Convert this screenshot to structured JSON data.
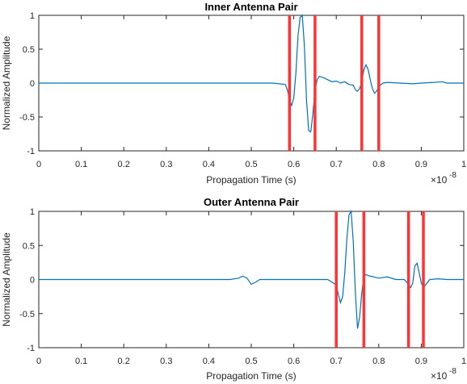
{
  "chart_data": [
    {
      "type": "line",
      "title": "Inner Antenna Pair",
      "xlabel": "Propagation Time (s)",
      "ylabel": "Normalized Amplitude",
      "xlim": [
        0,
        1
      ],
      "ylim": [
        -1,
        1
      ],
      "x_exponent_label": "×10",
      "x_exponent": "-8",
      "xticks": [
        0,
        0.1,
        0.2,
        0.3,
        0.4,
        0.5,
        0.6,
        0.7,
        0.8,
        0.9,
        1
      ],
      "xtick_labels": [
        "0",
        "0.1",
        "0.2",
        "0.3",
        "0.4",
        "0.5",
        "0.6",
        "0.7",
        "0.8",
        "0.9",
        "1"
      ],
      "yticks": [
        1,
        0.5,
        0,
        -0.5,
        -1
      ],
      "ytick_labels": [
        "1",
        "0.5",
        "0",
        "-0.5",
        "-1"
      ],
      "grid": false,
      "line_color": "#0072BD",
      "marker_color": "#FF3333",
      "series": [
        {
          "x": [
            0,
            0.55,
            0.58,
            0.585,
            0.59,
            0.595,
            0.6,
            0.605,
            0.61,
            0.615,
            0.62,
            0.625,
            0.63,
            0.635,
            0.64,
            0.645,
            0.65,
            0.655,
            0.66,
            0.67,
            0.68,
            0.69,
            0.7,
            0.71,
            0.72,
            0.73,
            0.74,
            0.745,
            0.75,
            0.755,
            0.76,
            0.765,
            0.77,
            0.775,
            0.78,
            0.785,
            0.79,
            0.795,
            0.8,
            0.81,
            0.82,
            0.85,
            0.88,
            0.9,
            0.93,
            0.95,
            0.96,
            1.0
          ],
          "y": [
            0,
            0,
            -0.02,
            -0.1,
            -0.25,
            -0.33,
            -0.22,
            0.15,
            0.7,
            0.97,
            1.0,
            0.55,
            -0.25,
            -0.7,
            -0.72,
            -0.45,
            -0.1,
            0.05,
            0.1,
            0.08,
            0.05,
            0.02,
            0.03,
            0.0,
            0.02,
            -0.02,
            -0.03,
            -0.1,
            -0.12,
            -0.08,
            0.02,
            0.2,
            0.27,
            0.2,
            0.05,
            -0.08,
            -0.15,
            -0.12,
            -0.05,
            0.0,
            0.01,
            0.0,
            -0.01,
            0.0,
            0.01,
            0.02,
            0.0,
            0
          ]
        }
      ],
      "vlines": [
        0.59,
        0.65,
        0.76,
        0.8
      ]
    },
    {
      "type": "line",
      "title": "Outer Antenna Pair",
      "xlabel": "Propagation Time (s)",
      "ylabel": "Normalized Amplitude",
      "xlim": [
        0,
        1
      ],
      "ylim": [
        -1,
        1
      ],
      "x_exponent_label": "×10",
      "x_exponent": "-8",
      "xticks": [
        0,
        0.1,
        0.2,
        0.3,
        0.4,
        0.5,
        0.6,
        0.7,
        0.8,
        0.9,
        1
      ],
      "xtick_labels": [
        "0",
        "0.1",
        "0.2",
        "0.3",
        "0.4",
        "0.5",
        "0.6",
        "0.7",
        "0.8",
        "0.9",
        "1"
      ],
      "yticks": [
        1,
        0.5,
        0,
        -0.5,
        -1
      ],
      "ytick_labels": [
        "1",
        "0.5",
        "0",
        "-0.5",
        "-1"
      ],
      "grid": false,
      "line_color": "#0072BD",
      "marker_color": "#FF3333",
      "series": [
        {
          "x": [
            0,
            0.45,
            0.47,
            0.48,
            0.49,
            0.5,
            0.51,
            0.52,
            0.54,
            0.68,
            0.7,
            0.705,
            0.71,
            0.715,
            0.72,
            0.725,
            0.73,
            0.735,
            0.74,
            0.745,
            0.75,
            0.755,
            0.76,
            0.765,
            0.77,
            0.78,
            0.8,
            0.82,
            0.84,
            0.86,
            0.87,
            0.875,
            0.88,
            0.885,
            0.89,
            0.895,
            0.9,
            0.905,
            0.91,
            0.92,
            0.94,
            0.96,
            1.0
          ],
          "y": [
            0,
            0,
            0.02,
            0.05,
            0.02,
            -0.07,
            -0.04,
            0.0,
            0,
            0,
            -0.08,
            -0.22,
            -0.34,
            -0.25,
            0.1,
            0.6,
            0.95,
            1.0,
            0.55,
            -0.2,
            -0.72,
            -0.55,
            -0.2,
            0.05,
            0.07,
            0.05,
            0.02,
            0.04,
            0.0,
            0.0,
            -0.07,
            -0.12,
            -0.05,
            0.2,
            0.24,
            0.1,
            -0.05,
            -0.12,
            -0.08,
            0.0,
            0.01,
            0.0,
            0
          ]
        }
      ],
      "vlines": [
        0.7,
        0.765,
        0.87,
        0.905
      ]
    }
  ]
}
